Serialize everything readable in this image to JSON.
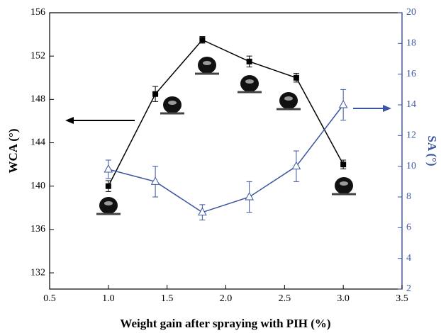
{
  "chart_data": {
    "type": "line",
    "xlabel": "Weight gain after spraying with PIH (%)",
    "ylabel": "WCA (°)",
    "y2label": "SA (°)",
    "x": [
      1.0,
      1.4,
      1.8,
      2.2,
      2.6,
      3.0
    ],
    "series": [
      {
        "name": "WCA",
        "color": "#000000",
        "marker": "square",
        "values": [
          140,
          148.5,
          153.5,
          151.5,
          150,
          142
        ],
        "errors": [
          0.5,
          0.7,
          0.3,
          0.5,
          0.4,
          0.4
        ]
      },
      {
        "name": "SA",
        "color": "#3b55a0",
        "marker": "triangle",
        "axis": "y2",
        "values": [
          9.8,
          9.0,
          7.0,
          8.0,
          10.0,
          14.0
        ],
        "errors": [
          0.6,
          1.0,
          0.5,
          1.0,
          1.0,
          1.0
        ]
      }
    ],
    "xlim": [
      0.5,
      3.5
    ],
    "xticks": [
      {
        "value": 0.5,
        "label": "0.5"
      },
      {
        "value": 1.0,
        "label": "1.0"
      },
      {
        "value": 1.5,
        "label": "1.5"
      },
      {
        "value": 2.0,
        "label": "2.0"
      },
      {
        "value": 2.5,
        "label": "2.5"
      },
      {
        "value": 3.0,
        "label": "3.0"
      },
      {
        "value": 3.5,
        "label": "3.5"
      }
    ],
    "ylim": [
      130.5,
      156
    ],
    "yticks": [
      132,
      136,
      140,
      144,
      148,
      152,
      156
    ],
    "y2lim": [
      2,
      20
    ],
    "y2ticks": [
      2,
      4,
      6,
      8,
      10,
      12,
      14,
      16,
      18,
      20
    ]
  }
}
